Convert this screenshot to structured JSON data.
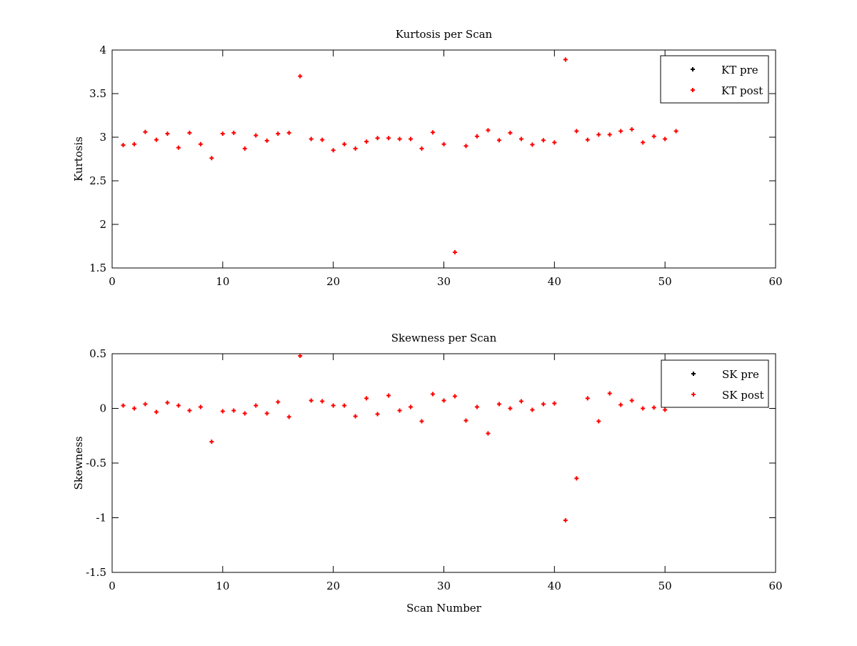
{
  "chart_data": [
    {
      "type": "scatter",
      "title": "Kurtosis per Scan",
      "xlabel": "",
      "ylabel": "Kurtosis",
      "xlim": [
        0,
        60
      ],
      "ylim": [
        1.5,
        4
      ],
      "xticks": [
        "0",
        "10",
        "20",
        "30",
        "40",
        "50",
        "60"
      ],
      "yticks": [
        "1.5",
        "2",
        "2.5",
        "3",
        "3.5",
        "4"
      ],
      "grid": false,
      "legend_position": "top-right",
      "series": [
        {
          "name": "KT pre",
          "color": "#000000",
          "x": [],
          "values": []
        },
        {
          "name": "KT post",
          "color": "#ff0000",
          "x": [
            1,
            2,
            3,
            4,
            5,
            6,
            7,
            8,
            9,
            10,
            11,
            12,
            13,
            14,
            15,
            16,
            17,
            18,
            19,
            20,
            21,
            22,
            23,
            24,
            25,
            26,
            27,
            28,
            29,
            30,
            31,
            32,
            33,
            34,
            35,
            36,
            37,
            38,
            39,
            40,
            41,
            42,
            43,
            44,
            45,
            46,
            47,
            48,
            49,
            50,
            51
          ],
          "values": [
            2.91,
            2.92,
            3.06,
            2.97,
            3.04,
            2.88,
            3.05,
            2.92,
            2.76,
            3.04,
            3.05,
            2.87,
            3.02,
            2.96,
            3.04,
            3.05,
            3.7,
            2.98,
            2.97,
            2.85,
            2.92,
            2.87,
            2.95,
            2.99,
            2.99,
            2.98,
            2.98,
            2.87,
            3.055,
            2.92,
            1.68,
            2.9,
            3.01,
            3.08,
            2.965,
            3.05,
            2.98,
            2.915,
            2.965,
            2.94,
            3.89,
            3.07,
            2.97,
            3.03,
            3.03,
            3.07,
            3.09,
            2.94,
            3.01,
            2.98,
            3.07
          ]
        }
      ]
    },
    {
      "type": "scatter",
      "title": "Skewness per Scan",
      "xlabel": "Scan Number",
      "ylabel": "Skewness",
      "xlim": [
        0,
        60
      ],
      "ylim": [
        -1.5,
        0.5
      ],
      "xticks": [
        "0",
        "10",
        "20",
        "30",
        "40",
        "50",
        "60"
      ],
      "yticks": [
        "-1.5",
        "-1",
        "-0.5",
        "0",
        "0.5"
      ],
      "grid": false,
      "legend_position": "top-right",
      "series": [
        {
          "name": "SK pre",
          "color": "#000000",
          "x": [],
          "values": []
        },
        {
          "name": "SK post",
          "color": "#ff0000",
          "x": [
            1,
            2,
            3,
            4,
            5,
            6,
            7,
            8,
            9,
            10,
            11,
            12,
            13,
            14,
            15,
            16,
            17,
            18,
            19,
            20,
            21,
            22,
            23,
            24,
            25,
            26,
            27,
            28,
            29,
            30,
            31,
            32,
            33,
            34,
            35,
            36,
            37,
            38,
            39,
            40,
            41,
            42,
            43,
            44,
            45,
            46,
            47,
            48,
            49,
            50
          ],
          "values": [
            0.026,
            0.0,
            0.039,
            -0.033,
            0.052,
            0.026,
            -0.02,
            0.013,
            -0.305,
            -0.026,
            -0.02,
            -0.046,
            0.026,
            -0.046,
            0.059,
            -0.078,
            0.48,
            0.072,
            0.065,
            0.026,
            0.026,
            -0.072,
            0.092,
            -0.052,
            0.118,
            -0.02,
            0.013,
            -0.118,
            0.131,
            0.072,
            0.111,
            -0.111,
            0.013,
            -0.229,
            0.039,
            0.0,
            0.065,
            -0.013,
            0.039,
            0.046,
            -1.024,
            -0.64,
            0.092,
            -0.118,
            0.137,
            0.033,
            0.072,
            0.0,
            0.007,
            -0.013
          ]
        }
      ]
    }
  ]
}
